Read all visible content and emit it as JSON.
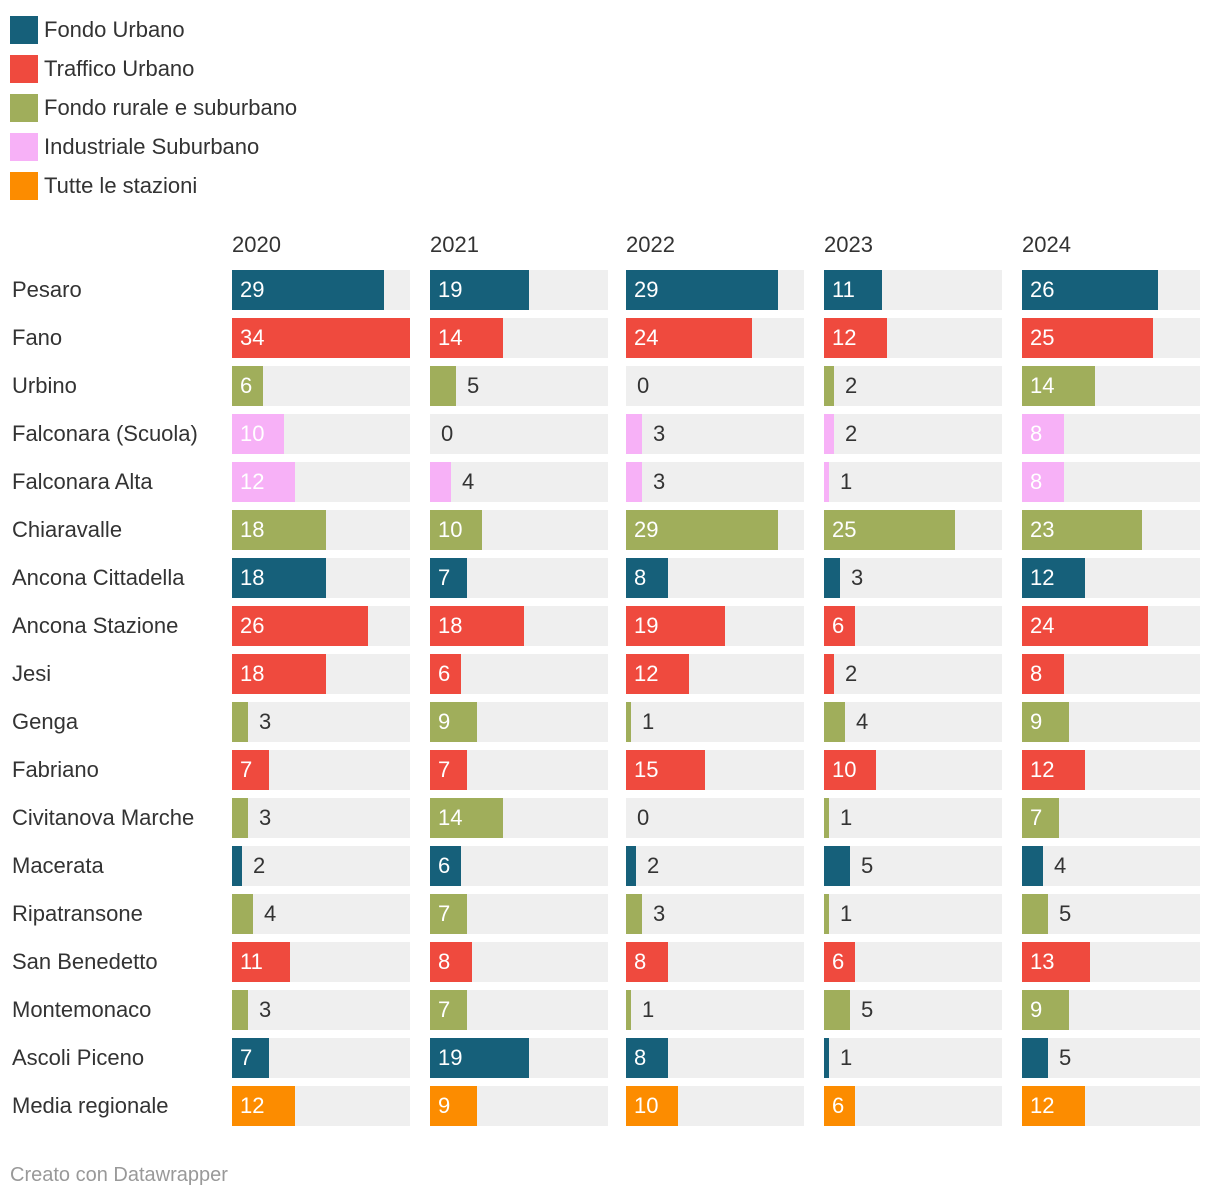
{
  "chart_data": {
    "type": "bar",
    "legend": [
      {
        "name": "Fondo Urbano",
        "color": "#16607a"
      },
      {
        "name": "Traffico Urbano",
        "color": "#ef4a3e"
      },
      {
        "name": "Fondo rurale e suburbano",
        "color": "#a0ae5b"
      },
      {
        "name": "Industriale Suburbano",
        "color": "#f7b1f7"
      },
      {
        "name": "Tutte le stazioni",
        "color": "#fc8c00"
      }
    ],
    "years": [
      "2020",
      "2021",
      "2022",
      "2023",
      "2024"
    ],
    "max_value": 34,
    "rows": [
      {
        "label": "Pesaro",
        "type": "Fondo Urbano",
        "values": [
          29,
          19,
          29,
          11,
          26
        ]
      },
      {
        "label": "Fano",
        "type": "Traffico Urbano",
        "values": [
          34,
          14,
          24,
          12,
          25
        ]
      },
      {
        "label": "Urbino",
        "type": "Fondo rurale e suburbano",
        "values": [
          6,
          5,
          0,
          2,
          14
        ]
      },
      {
        "label": "Falconara (Scuola)",
        "type": "Industriale Suburbano",
        "values": [
          10,
          0,
          3,
          2,
          8
        ]
      },
      {
        "label": "Falconara Alta",
        "type": "Industriale Suburbano",
        "values": [
          12,
          4,
          3,
          1,
          8
        ]
      },
      {
        "label": "Chiaravalle",
        "type": "Fondo rurale e suburbano",
        "values": [
          18,
          10,
          29,
          25,
          23
        ]
      },
      {
        "label": "Ancona Cittadella",
        "type": "Fondo Urbano",
        "values": [
          18,
          7,
          8,
          3,
          12
        ]
      },
      {
        "label": "Ancona Stazione",
        "type": "Traffico Urbano",
        "values": [
          26,
          18,
          19,
          6,
          24
        ]
      },
      {
        "label": "Jesi",
        "type": "Traffico Urbano",
        "values": [
          18,
          6,
          12,
          2,
          8
        ]
      },
      {
        "label": "Genga",
        "type": "Fondo rurale e suburbano",
        "values": [
          3,
          9,
          1,
          4,
          9
        ]
      },
      {
        "label": "Fabriano",
        "type": "Traffico Urbano",
        "values": [
          7,
          7,
          15,
          10,
          12
        ]
      },
      {
        "label": "Civitanova Marche",
        "type": "Fondo rurale e suburbano",
        "values": [
          3,
          14,
          0,
          1,
          7
        ]
      },
      {
        "label": "Macerata",
        "type": "Fondo Urbano",
        "values": [
          2,
          6,
          2,
          5,
          4
        ]
      },
      {
        "label": "Ripatransone",
        "type": "Fondo rurale e suburbano",
        "values": [
          4,
          7,
          3,
          1,
          5
        ]
      },
      {
        "label": "San Benedetto",
        "type": "Traffico Urbano",
        "values": [
          11,
          8,
          8,
          6,
          13
        ]
      },
      {
        "label": "Montemonaco",
        "type": "Fondo rurale e suburbano",
        "values": [
          3,
          7,
          1,
          5,
          9
        ]
      },
      {
        "label": "Ascoli Piceno",
        "type": "Fondo Urbano",
        "values": [
          7,
          19,
          8,
          1,
          5
        ]
      },
      {
        "label": "Media regionale",
        "type": "Tutte le stazioni",
        "values": [
          12,
          9,
          10,
          6,
          12
        ]
      }
    ]
  },
  "footer": "Creato con Datawrapper"
}
